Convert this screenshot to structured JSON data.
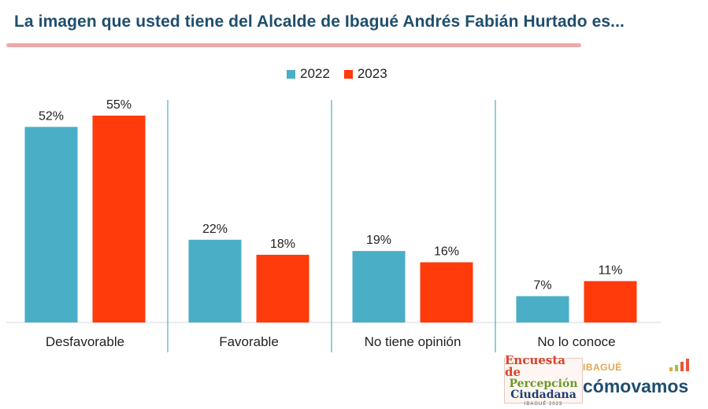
{
  "header": {
    "title": "La imagen que usted tiene del Alcalde de Ibagué Andrés Fabián Hurtado es..."
  },
  "colors": {
    "series_2022": "#4aaec6",
    "series_2023": "#ff3a0b",
    "title": "#1f4e6e",
    "underline": "#f0a8aa",
    "divider": "#4aaec6"
  },
  "chart_data": {
    "type": "bar",
    "categories": [
      "Desfavorable",
      "Favorable",
      "No tiene opinión",
      "No lo conoce"
    ],
    "series": [
      {
        "name": "2022",
        "values": [
          52,
          22,
          19,
          7
        ],
        "labels": [
          "52%",
          "22%",
          "19%",
          "7%"
        ]
      },
      {
        "name": "2023",
        "values": [
          55,
          18,
          16,
          11
        ],
        "labels": [
          "55%",
          "18%",
          "16%",
          "11%"
        ]
      }
    ],
    "ylim": [
      0,
      55
    ],
    "legend": "top-center",
    "grid": false
  },
  "logos": {
    "encuesta": {
      "line1": "Encuesta de",
      "line2": "Percepción",
      "line3": "Ciudadana",
      "line4": "IBAGUÉ 2023"
    },
    "comovamos": {
      "small": "IBAGUÉ",
      "big": "cómovamos"
    }
  }
}
